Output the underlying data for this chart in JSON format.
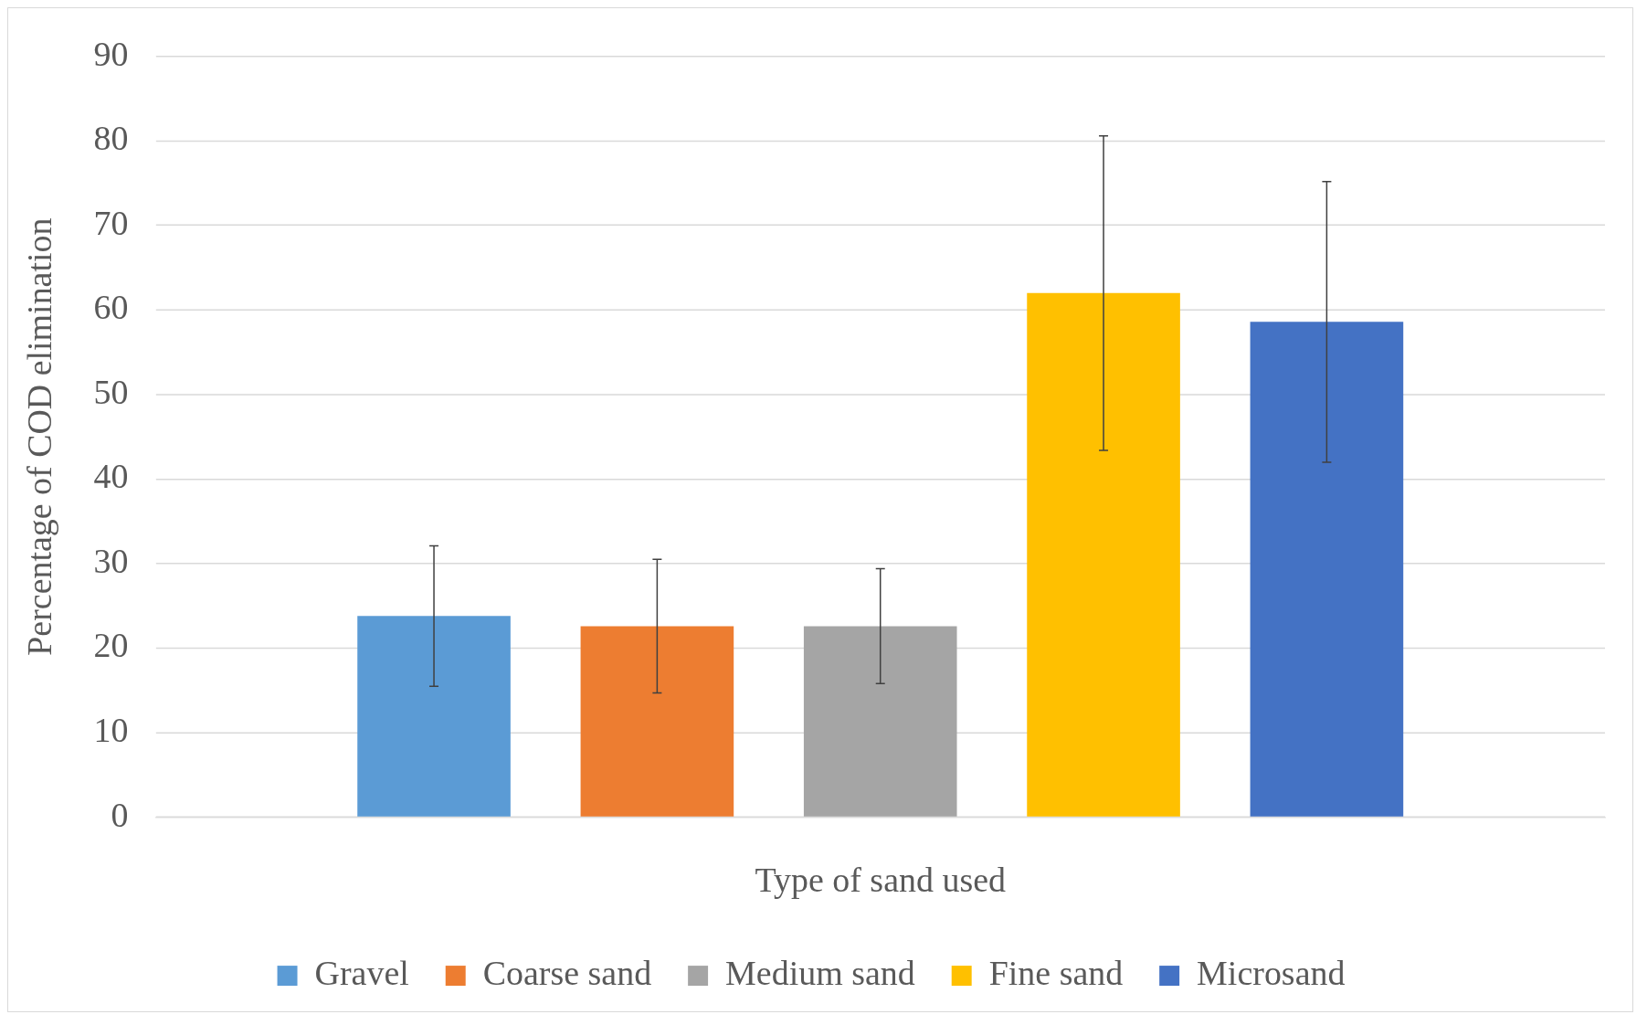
{
  "chart_data": {
    "type": "bar",
    "xlabel": "Type of sand used",
    "ylabel": "Percentage of COD elimination",
    "categories": [
      null
    ],
    "series": [
      {
        "name": "Gravel",
        "color": "#5b9bd5",
        "values": [
          23.8
        ],
        "errors": [
          8.3
        ]
      },
      {
        "name": "Coarse sand",
        "color": "#ed7d31",
        "values": [
          22.6
        ],
        "errors": [
          7.9
        ]
      },
      {
        "name": "Medium sand",
        "color": "#a5a5a5",
        "values": [
          22.6
        ],
        "errors": [
          6.8
        ]
      },
      {
        "name": "Fine sand",
        "color": "#ffc000",
        "values": [
          62.0
        ],
        "errors": [
          18.6
        ]
      },
      {
        "name": "Microsand",
        "color": "#4472c4",
        "values": [
          58.6
        ],
        "errors": [
          16.6
        ]
      }
    ],
    "ylim": [
      0,
      90
    ],
    "yticks": [
      0,
      10,
      20,
      30,
      40,
      50,
      60,
      70,
      80,
      90
    ],
    "grid": "y",
    "legend": "bottom"
  }
}
